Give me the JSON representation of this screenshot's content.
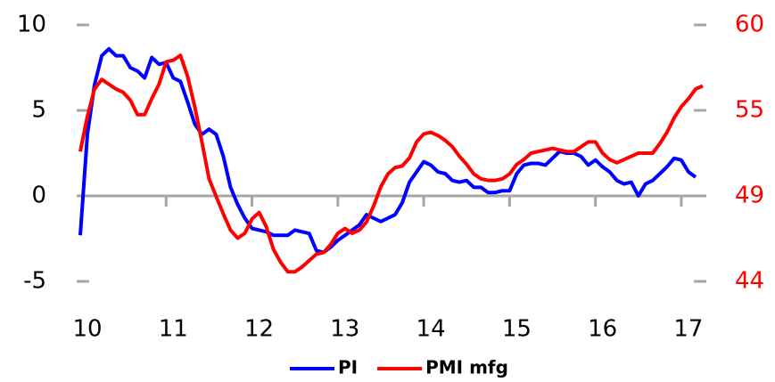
{
  "chart_data": {
    "type": "line",
    "categories": [
      "10",
      null,
      null,
      null,
      null,
      null,
      null,
      null,
      null,
      null,
      null,
      null,
      "11",
      null,
      null,
      null,
      null,
      null,
      null,
      null,
      null,
      null,
      null,
      null,
      "12",
      null,
      null,
      null,
      null,
      null,
      null,
      null,
      null,
      null,
      null,
      null,
      "13",
      null,
      null,
      null,
      null,
      null,
      null,
      null,
      null,
      null,
      null,
      null,
      "14",
      null,
      null,
      null,
      null,
      null,
      null,
      null,
      null,
      null,
      null,
      null,
      "15",
      null,
      null,
      null,
      null,
      null,
      null,
      null,
      null,
      null,
      null,
      null,
      "16",
      null,
      null,
      null,
      null,
      null,
      null,
      null,
      null,
      null,
      null,
      null,
      "17",
      null,
      null,
      null
    ],
    "series": [
      {
        "name": "PI",
        "color": "#0000ff",
        "values": [
          -2.3,
          3.6,
          6.5,
          8.2,
          8.6,
          8.2,
          8.2,
          7.5,
          7.3,
          6.9,
          8.1,
          7.7,
          7.8,
          6.9,
          6.7,
          5.5,
          4.2,
          3.6,
          3.9,
          3.6,
          2.3,
          0.5,
          -0.5,
          -1.3,
          -1.9,
          -2.0,
          -2.1,
          -2.3,
          -2.3,
          -2.3,
          -2.0,
          -2.1,
          -2.2,
          -3.2,
          -3.3,
          -3.0,
          -2.6,
          -2.3,
          -2.0,
          -1.7,
          -1.1,
          -1.3,
          -1.5,
          -1.3,
          -1.1,
          -0.4,
          0.8,
          1.4,
          2.0,
          1.8,
          1.4,
          1.3,
          0.9,
          0.8,
          0.9,
          0.5,
          0.5,
          0.2,
          0.2,
          0.3,
          0.3,
          1.3,
          1.8,
          1.9,
          1.9,
          1.8,
          2.2,
          2.6,
          2.5,
          2.5,
          2.3,
          1.8,
          2.1,
          1.7,
          1.4,
          0.9,
          0.7,
          0.8,
          0.0,
          0.7,
          0.9,
          1.3,
          1.7,
          2.2,
          2.1,
          1.4,
          1.1,
          null
        ]
      },
      {
        "name": "PMI mfg",
        "color": "#ff0000",
        "axis": "y2",
        "values": [
          52.1,
          54.3,
          56.0,
          56.6,
          56.3,
          56.0,
          55.8,
          55.3,
          54.4,
          54.4,
          55.4,
          56.3,
          57.7,
          57.8,
          58.1,
          56.8,
          54.9,
          52.7,
          50.4,
          49.3,
          48.2,
          47.2,
          46.7,
          47.0,
          47.9,
          48.3,
          47.4,
          46.0,
          45.2,
          44.6,
          44.6,
          44.9,
          45.3,
          45.7,
          45.8,
          46.3,
          47.0,
          47.3,
          47.0,
          47.2,
          47.7,
          48.7,
          49.9,
          50.7,
          51.1,
          51.2,
          51.7,
          52.7,
          53.2,
          53.3,
          53.1,
          52.8,
          52.4,
          51.8,
          51.3,
          50.7,
          50.4,
          50.3,
          50.3,
          50.4,
          50.7,
          51.3,
          51.6,
          52.0,
          52.1,
          52.2,
          52.3,
          52.2,
          52.1,
          52.1,
          52.4,
          52.7,
          52.7,
          52.0,
          51.6,
          51.4,
          51.6,
          51.8,
          52.0,
          52.0,
          52.0,
          52.6,
          53.3,
          54.2,
          54.9,
          55.4,
          56.0,
          56.2
        ]
      }
    ],
    "ylim": [
      -5,
      10
    ],
    "yticks": [
      -5,
      0,
      5,
      10
    ],
    "y2lim": [
      44,
      60
    ],
    "y2ticks": [
      44,
      {
        "value": 49.33,
        "label": "49"
      },
      {
        "value": 54.67,
        "label": "55"
      },
      60
    ],
    "y_color": "#000000",
    "y2_color": "#ff0000",
    "legend": "bottom"
  }
}
